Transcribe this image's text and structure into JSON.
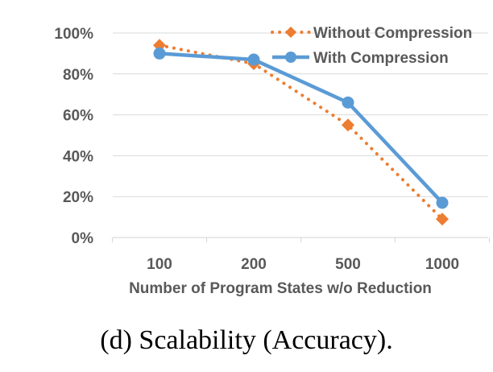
{
  "chart_data": {
    "type": "line",
    "categories": [
      "100",
      "200",
      "500",
      "1000"
    ],
    "series": [
      {
        "name": "Without Compression",
        "values": [
          94,
          85,
          55,
          9
        ],
        "color": "#ED7D31",
        "line_style": "dotted",
        "marker": "diamond"
      },
      {
        "name": "With Compression",
        "values": [
          90,
          87,
          66,
          17
        ],
        "color": "#5B9BD5",
        "line_style": "solid",
        "marker": "circle"
      }
    ],
    "xlabel": "Number of Program States w/o Reduction",
    "ylabel": "",
    "ylim": [
      0,
      100
    ],
    "yticks": [
      "0%",
      "20%",
      "40%",
      "60%",
      "80%",
      "100%"
    ],
    "grid": true,
    "legend_position": "top-right"
  },
  "caption": "(d) Scalability (Accuracy)."
}
